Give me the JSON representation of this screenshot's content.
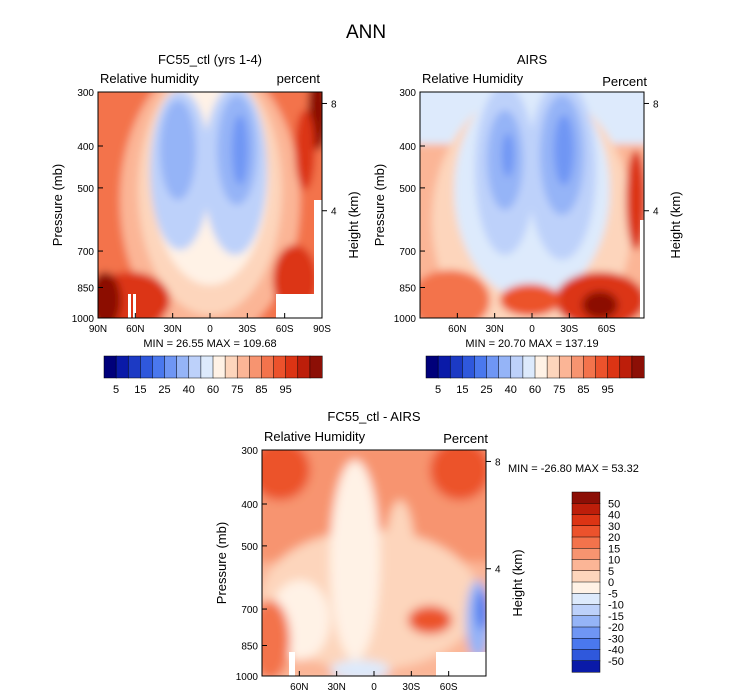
{
  "page": {
    "title": "ANN"
  },
  "chart_data": [
    {
      "type": "heatmap",
      "title": "FC55_ctl (yrs 1-4)",
      "left_label": "Relative humidity",
      "right_label": "percent",
      "ylabel": "Pressure (mb)",
      "y2label": "Height (km)",
      "yticks": [
        "300",
        "400",
        "500",
        "700",
        "850",
        "1000"
      ],
      "y2ticks": [
        "8",
        "4"
      ],
      "xticks": [
        "90N",
        "60N",
        "30N",
        "0",
        "30S",
        "60S",
        "90S"
      ],
      "stats": "MIN =   26.55   MAX = 109.68",
      "field": "model"
    },
    {
      "type": "heatmap",
      "title": "AIRS",
      "left_label": "Relative Humidity",
      "right_label": "Percent",
      "ylabel": "Pressure (mb)",
      "y2label": "Height (km)",
      "yticks": [
        "300",
        "400",
        "500",
        "700",
        "850",
        "1000"
      ],
      "y2ticks": [
        "8",
        "4"
      ],
      "xticks": [
        "60N",
        "30N",
        "0",
        "30S",
        "60S"
      ],
      "stats": "MIN =   20.70   MAX = 137.19",
      "field": "obs"
    },
    {
      "type": "heatmap",
      "title": "FC55_ctl - AIRS",
      "left_label": "Relative Humidity",
      "right_label": "Percent",
      "ylabel": "Pressure (mb)",
      "y2label": "Height (km)",
      "yticks": [
        "300",
        "400",
        "500",
        "700",
        "850",
        "1000"
      ],
      "y2ticks": [
        "8",
        "4"
      ],
      "xticks": [
        "60N",
        "30N",
        "0",
        "30S",
        "60S"
      ],
      "stats": "MIN = -26.80    MAX =   53.32",
      "field": "diff"
    }
  ],
  "colorbar_abs": {
    "labels": [
      "5",
      "15",
      "25",
      "40",
      "60",
      "75",
      "85",
      "95"
    ],
    "colors": [
      "#00007a",
      "#0a1aa8",
      "#1c3ac4",
      "#2f58dc",
      "#4a78ee",
      "#6f96f4",
      "#95b4f7",
      "#bdd1fa",
      "#ddeafc",
      "#fff2e6",
      "#fdd5bc",
      "#fbb596",
      "#f79470",
      "#f3734c",
      "#ec522c",
      "#dc3414",
      "#bd1e0a",
      "#8c0f06"
    ]
  },
  "colorbar_diff": {
    "labels": [
      "50",
      "40",
      "30",
      "20",
      "15",
      "10",
      "5",
      "0",
      "-5",
      "-10",
      "-15",
      "-20",
      "-30",
      "-40",
      "-50"
    ],
    "colors": [
      "#8c0f06",
      "#bd1e0a",
      "#dc3414",
      "#ec522c",
      "#f3734c",
      "#f79470",
      "#fbb596",
      "#fdd5bc",
      "#fff2e6",
      "#ddeafc",
      "#bdd1fa",
      "#95b4f7",
      "#6f96f4",
      "#4a78ee",
      "#2f58dc",
      "#0a1aa8"
    ]
  }
}
